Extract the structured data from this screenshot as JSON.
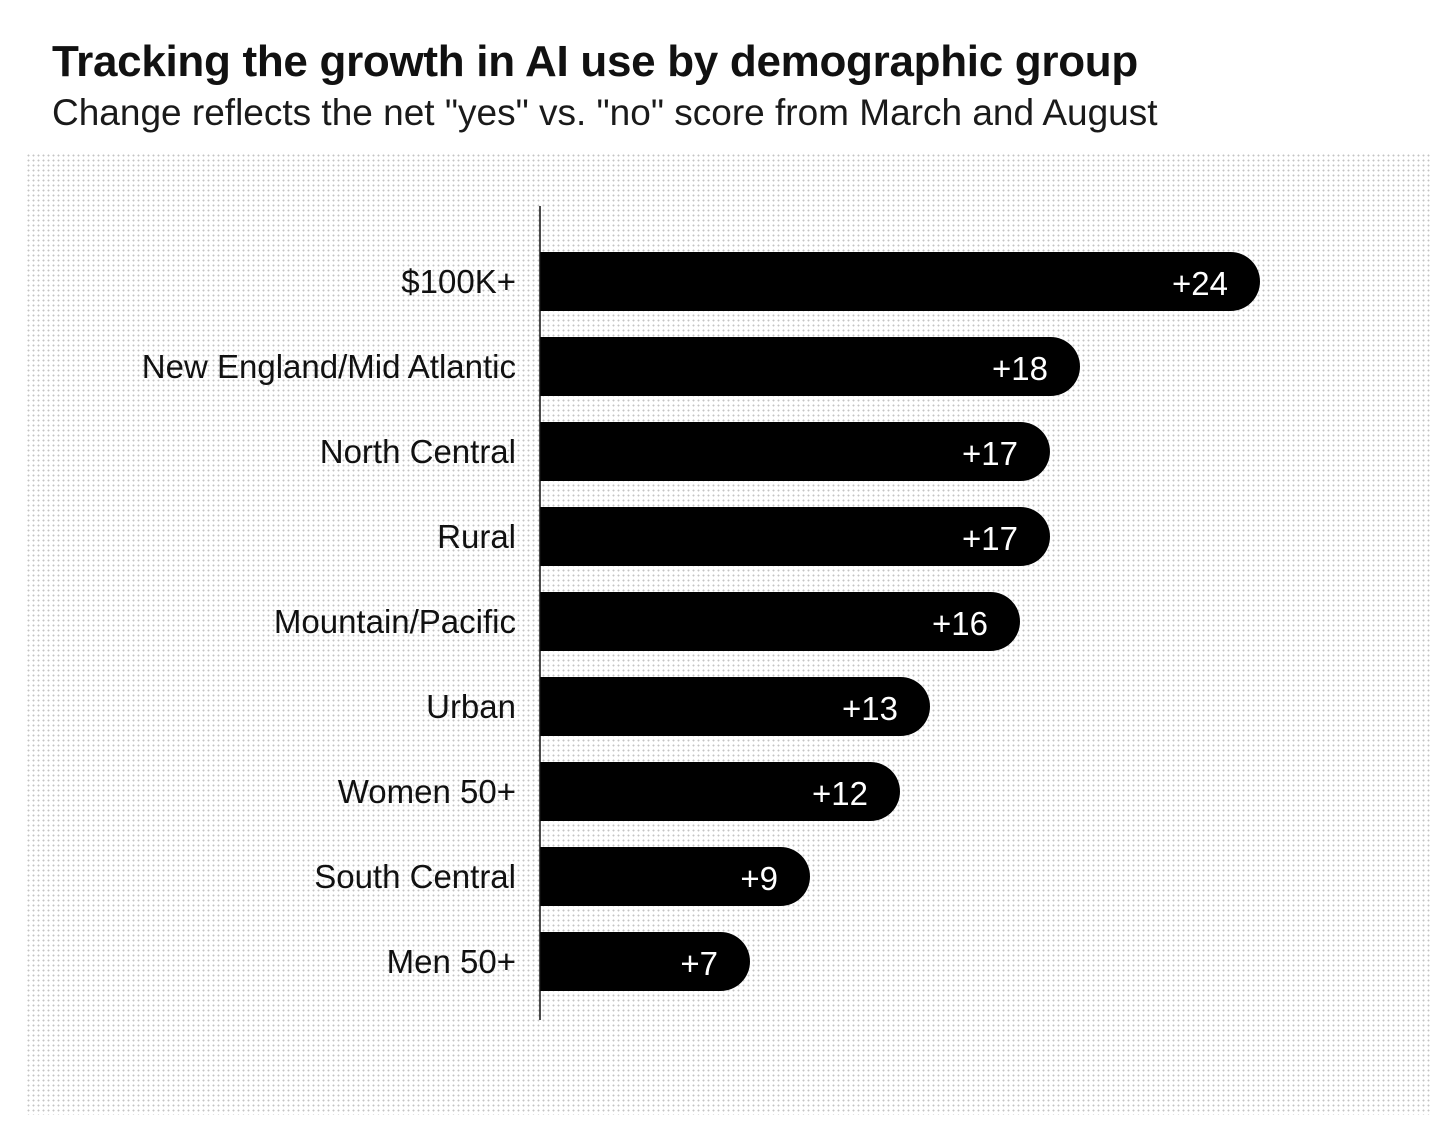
{
  "chart_data": {
    "type": "bar",
    "orientation": "horizontal",
    "title": "Tracking the growth in AI use by demographic group",
    "subtitle": "Change reflects the net \"yes\" vs. \"no\" score from March and August",
    "categories": [
      "$100K+",
      "New England/Mid Atlantic",
      "North Central",
      "Rural",
      "Mountain/Pacific",
      "Urban",
      "Women 50+",
      "South Central",
      "Men 50+"
    ],
    "values": [
      24,
      18,
      17,
      17,
      16,
      13,
      12,
      9,
      7
    ],
    "value_labels": [
      "+24",
      "+18",
      "+17",
      "+17",
      "+16",
      "+13",
      "+12",
      "+9",
      "+7"
    ],
    "xlabel": "",
    "ylabel": "",
    "xlim": [
      0,
      24
    ],
    "grid": false,
    "bar_color": "#000000",
    "label_color": "#ffffff"
  }
}
